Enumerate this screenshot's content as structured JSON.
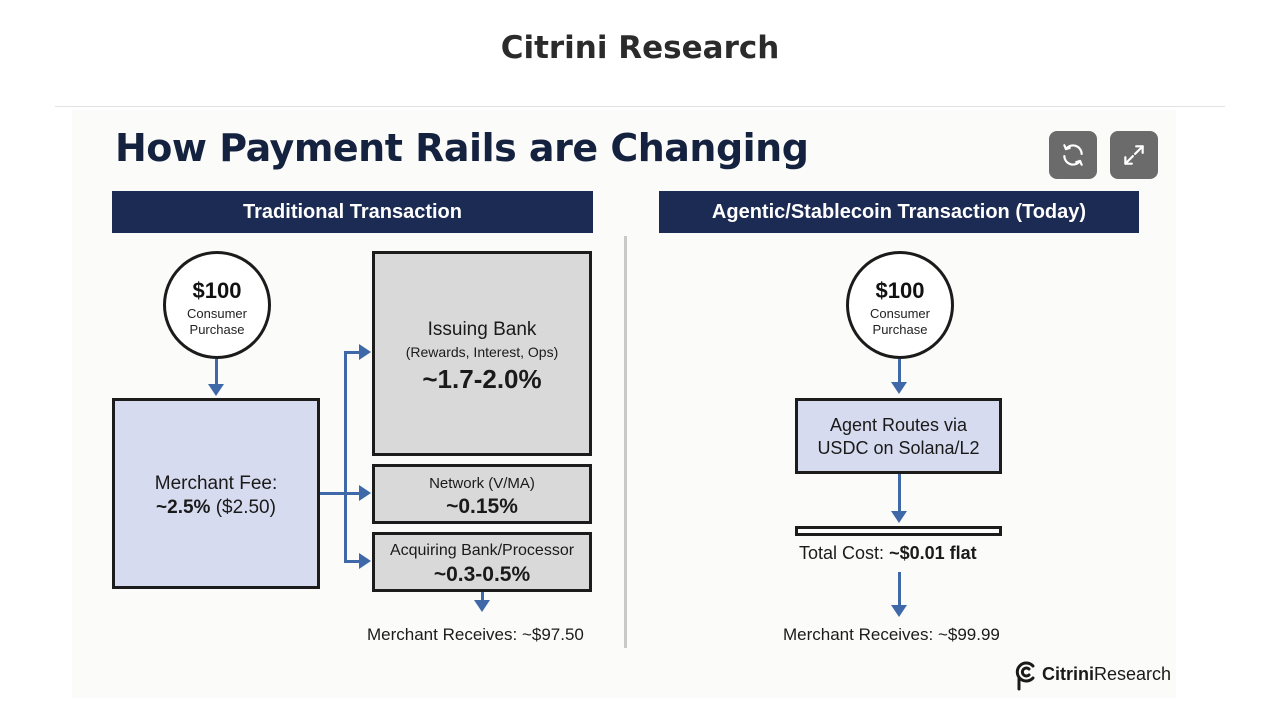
{
  "site": {
    "title": "Citrini Research"
  },
  "figure": {
    "title": "How Payment Rails are Changing",
    "controls": {
      "refresh_icon": "refresh-icon",
      "expand_icon": "expand-icon"
    },
    "colors": {
      "header_bg": "#1c2b53",
      "arrow": "#3f68a8",
      "blue_box": "#d6dbef",
      "gray_box": "#d9d9d9",
      "control_bg": "#6b6b6b"
    },
    "traditional": {
      "header": "Traditional Transaction",
      "purchase": {
        "amount": "$100",
        "line1": "Consumer",
        "line2": "Purchase"
      },
      "merchant_fee": {
        "label": "Merchant Fee:",
        "value_bold": "~2.5%",
        "value_rest": "($2.50)"
      },
      "issuing_bank": {
        "name": "Issuing Bank",
        "detail": "(Rewards, Interest, Ops)",
        "value": "~1.7-2.0%"
      },
      "network": {
        "name": "Network (V/MA)",
        "value": "~0.15%"
      },
      "acquiring": {
        "name": "Acquiring Bank/Processor",
        "value": "~0.3-0.5%"
      },
      "merchant_receives": "Merchant Receives: ~$97.50"
    },
    "agentic": {
      "header": "Agentic/Stablecoin Transaction (Today)",
      "purchase": {
        "amount": "$100",
        "line1": "Consumer",
        "line2": "Purchase"
      },
      "route": {
        "line1": "Agent Routes via",
        "line2": "USDC on Solana/L2"
      },
      "total_cost": {
        "label": "Total Cost:",
        "value": "~$0.01 flat"
      },
      "merchant_receives": "Merchant Receives: ~$99.99"
    },
    "logo": {
      "bold": "Citrini",
      "rest": "Research",
      "icon": "citrini-logo-icon"
    }
  }
}
